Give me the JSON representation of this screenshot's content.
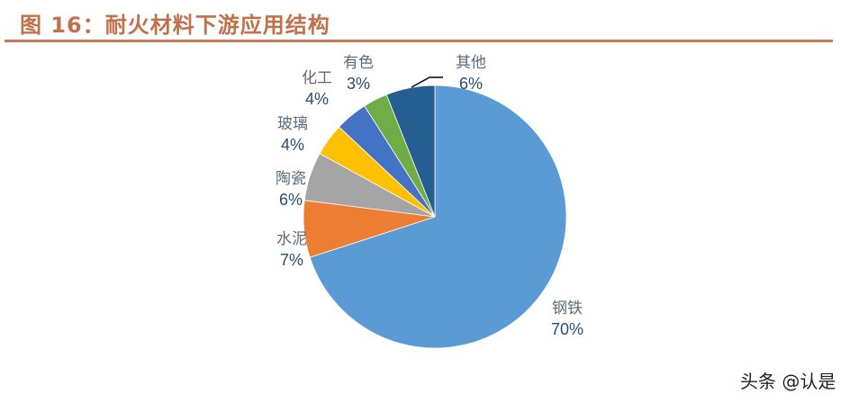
{
  "title": "图 16：耐火材料下游应用结构",
  "watermark": "头条 @认是",
  "chart_data": {
    "type": "pie",
    "title": "图 16：耐火材料下游应用结构",
    "categories": [
      "钢铁",
      "水泥",
      "陶瓷",
      "玻璃",
      "化工",
      "有色",
      "其他"
    ],
    "values": [
      70,
      7,
      6,
      4,
      4,
      3,
      6
    ],
    "labels": [
      "70%",
      "7%",
      "6%",
      "4%",
      "4%",
      "3%",
      "6%"
    ],
    "colors": [
      "#5b9bd5",
      "#ed7d31",
      "#a5a5a5",
      "#ffc000",
      "#4472c4",
      "#70ad47",
      "#255e91"
    ],
    "start_angle": "12 o'clock",
    "direction": "clockwise",
    "legend": "none (data labels)"
  }
}
